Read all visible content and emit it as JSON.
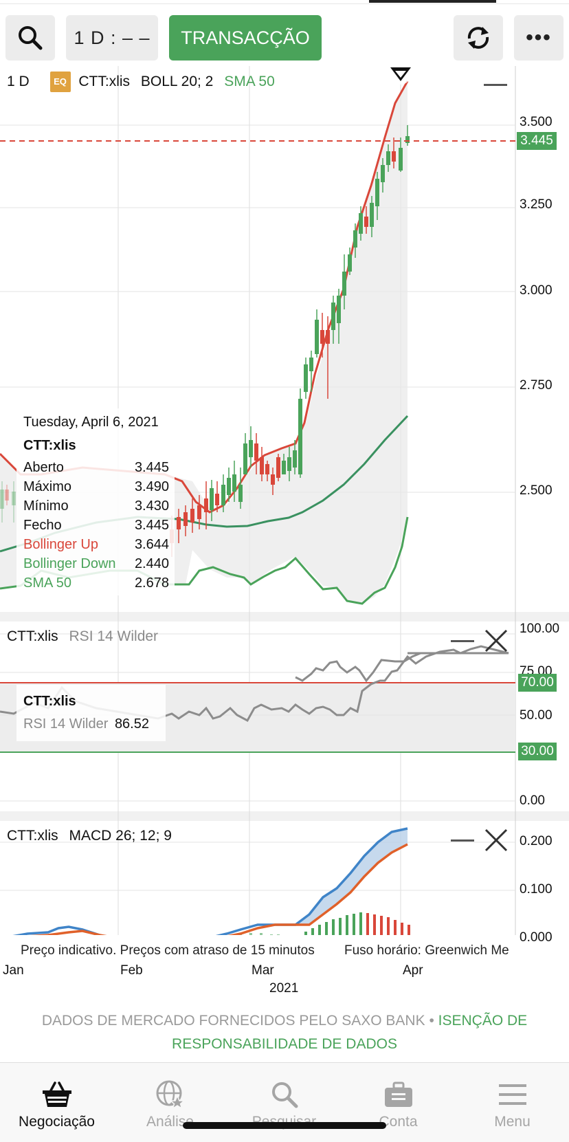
{
  "toolbar": {
    "interval_label": "1 D : – –",
    "trade_label": "TRANSACÇÃO",
    "more_label": "•••"
  },
  "chart_header": {
    "interval": "1 D",
    "badge": "EQ",
    "symbol": "CTT:xlis",
    "boll": "BOLL 20; 2",
    "sma": "SMA 50"
  },
  "price_axis": [
    "3.500",
    "3.250",
    "3.000",
    "2.750",
    "2.500"
  ],
  "last_price_tag": "3.445",
  "tooltip": {
    "date": "Tuesday, April 6, 2021",
    "symbol": "CTT:xlis",
    "rows": [
      {
        "label": "Aberto",
        "value": "3.445"
      },
      {
        "label": "Máximo",
        "value": "3.490"
      },
      {
        "label": "Mínimo",
        "value": "3.430"
      },
      {
        "label": "Fecho",
        "value": "3.445"
      },
      {
        "label": "Bollinger Up",
        "value": "3.644"
      },
      {
        "label": "Bollinger Down",
        "value": "2.440"
      },
      {
        "label": "SMA 50",
        "value": "2.678"
      }
    ]
  },
  "rsi_panel": {
    "symbol": "CTT:xlis",
    "indicator": "RSI 14 Wilder",
    "axis": [
      "100.00",
      "75.00",
      "50.00",
      "0.00"
    ],
    "upper_tag": "70.00",
    "lower_tag": "30.00",
    "tooltip_symbol": "CTT:xlis",
    "tooltip_label": "RSI 14 Wilder",
    "tooltip_value": "86.52"
  },
  "macd_panel": {
    "symbol": "CTT:xlis",
    "indicator": "MACD 26; 12; 9",
    "axis": [
      "0.200",
      "0.100",
      "0.000"
    ]
  },
  "notices": {
    "indicative": "Preço indicativo. Preços com atraso de 15 minutos",
    "timezone": "Fuso horário: Greenwich Me"
  },
  "time_axis": {
    "months": [
      "Jan",
      "Feb",
      "Mar",
      "Apr"
    ],
    "year": "2021"
  },
  "footer": {
    "provider": "DADOS DE MERCADO FORNECIDOS PELO SAXO BANK",
    "separator": " • ",
    "disclaimer": "ISENÇÃO DE RESPONSABILIDADE DE DADOS"
  },
  "bottom_nav": [
    {
      "label": "Negociação",
      "icon": "basket-icon",
      "active": true
    },
    {
      "label": "Análise",
      "icon": "globe-star-icon",
      "active": false
    },
    {
      "label": "Pesquisar",
      "icon": "search-icon",
      "active": false
    },
    {
      "label": "Conta",
      "icon": "briefcase-icon",
      "active": false
    },
    {
      "label": "Menu",
      "icon": "hamburger-icon",
      "active": false
    }
  ],
  "colors": {
    "accent_green": "#4aa35a",
    "bollinger_red": "#d9473a",
    "macd_blue": "#3f84c8",
    "signal_orange": "#e0612a"
  }
}
